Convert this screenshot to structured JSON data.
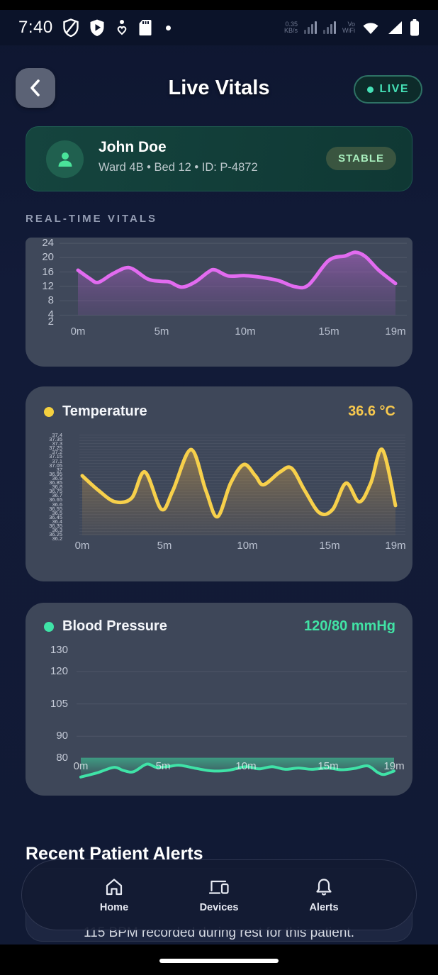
{
  "status_bar": {
    "time": "7:40",
    "net_speed_top": "0.35",
    "net_speed_bottom": "KB/s",
    "vowifi_top": "Vo",
    "vowifi_bottom": "WiFi",
    "icons_left": [
      "dns-shield-icon",
      "vpn-shield-icon",
      "wellbeing-icon",
      "sdcard-icon",
      "notification-dot-icon"
    ],
    "icons_right": [
      "signal-bars-icon",
      "signal-bars-icon",
      "wifi-icon",
      "cellular-triangle-icon",
      "battery-icon"
    ]
  },
  "header": {
    "title": "Live Vitals",
    "live_label": "LIVE"
  },
  "patient": {
    "name": "John Doe",
    "meta": "Ward 4B • Bed 12 • ID: P-4872",
    "status": "STABLE"
  },
  "section_label": "REAL-TIME VITALS",
  "chart_data": [
    {
      "id": "rate",
      "type": "area",
      "title": "",
      "value": "",
      "line_color": "#e26bf0",
      "fill_top": "rgba(196,104,220,0.50)",
      "fill_bottom": "rgba(140,80,170,0.18)",
      "line_width": 5,
      "ylim": [
        1.9,
        25.2
      ],
      "yticks": [
        24,
        20,
        16,
        12,
        8,
        4,
        2
      ],
      "gridlines": [
        24,
        20,
        16,
        12,
        8,
        4
      ],
      "fill_to": 4,
      "xticks": [
        {
          "m": 0,
          "label": "0m"
        },
        {
          "m": 5,
          "label": "5m"
        },
        {
          "m": 10,
          "label": "10m"
        },
        {
          "m": 15,
          "label": "15m"
        },
        {
          "m": 19,
          "label": "19m"
        }
      ],
      "points": [
        [
          0,
          16.5
        ],
        [
          0.7,
          14.2
        ],
        [
          1.2,
          13.1
        ],
        [
          2,
          15.3
        ],
        [
          2.8,
          17.1
        ],
        [
          3.3,
          16.8
        ],
        [
          4.2,
          14.0
        ],
        [
          5,
          13.4
        ],
        [
          5.5,
          13.2
        ],
        [
          6.2,
          11.8
        ],
        [
          7,
          13.2
        ],
        [
          7.8,
          16.0
        ],
        [
          8.2,
          16.6
        ],
        [
          9,
          14.9
        ],
        [
          10,
          15.0
        ],
        [
          11,
          14.5
        ],
        [
          12,
          13.6
        ],
        [
          13,
          11.9
        ],
        [
          13.8,
          12.4
        ],
        [
          15,
          19.2
        ],
        [
          16,
          20.5
        ],
        [
          16.6,
          21.5
        ],
        [
          17.2,
          20.3
        ],
        [
          18,
          16.5
        ],
        [
          19,
          12.8
        ]
      ]
    },
    {
      "id": "temp",
      "type": "area",
      "title": "Temperature",
      "value": "36.6 °C",
      "dot_color": "#f4d03f",
      "value_color": "#f8c94e",
      "line_color": "#f7d04b",
      "fill_top": "rgba(208,160,72,0.55)",
      "fill_bottom": "rgba(150,120,80,0.10)",
      "line_width": 5,
      "ylim": [
        36.1,
        37.45
      ],
      "yticks": [],
      "ytick_dense": [
        "37.4",
        "37.35",
        "37.3",
        "37.25",
        "37.2",
        "37.15",
        "37.1",
        "37.05",
        "37",
        "36.95",
        "36.9",
        "36.85",
        "36.8",
        "36.75",
        "36.7",
        "36.65",
        "36.6",
        "36.55",
        "36.5",
        "36.45",
        "36.4",
        "36.35",
        "36.3",
        "36.25",
        "36.2"
      ],
      "gridlines": [],
      "fill_to": 36.1,
      "xticks": [
        {
          "m": 0,
          "label": "0m"
        },
        {
          "m": 5,
          "label": "5m"
        },
        {
          "m": 10,
          "label": "10m"
        },
        {
          "m": 15,
          "label": "15m"
        },
        {
          "m": 19,
          "label": "19m"
        }
      ],
      "points": [
        [
          0,
          36.9
        ],
        [
          1,
          36.7
        ],
        [
          2,
          36.55
        ],
        [
          3,
          36.6
        ],
        [
          3.8,
          36.95
        ],
        [
          4.8,
          36.45
        ],
        [
          5.5,
          36.7
        ],
        [
          6.6,
          37.25
        ],
        [
          7.5,
          36.7
        ],
        [
          8.2,
          36.35
        ],
        [
          9,
          36.8
        ],
        [
          9.8,
          37.05
        ],
        [
          10.5,
          36.9
        ],
        [
          11,
          36.78
        ],
        [
          12,
          36.95
        ],
        [
          12.7,
          37.0
        ],
        [
          13.5,
          36.7
        ],
        [
          14.4,
          36.4
        ],
        [
          15.2,
          36.45
        ],
        [
          16,
          36.8
        ],
        [
          16.8,
          36.55
        ],
        [
          17.5,
          36.8
        ],
        [
          18.2,
          37.25
        ],
        [
          19,
          36.5
        ]
      ]
    },
    {
      "id": "bp",
      "type": "area",
      "title": "Blood Pressure",
      "value": "120/80 mmHg",
      "dot_color": "#3fe3a7",
      "value_color": "#41e3a5",
      "line_color": "#3fe3a7",
      "fill_top": "rgba(63,224,164,0.55)",
      "fill_bottom": "rgba(63,224,164,0.05)",
      "line_width": 4,
      "ylim": [
        65,
        133
      ],
      "yticks": [
        130,
        120,
        105,
        90,
        80
      ],
      "gridlines": [
        120,
        105,
        90
      ],
      "fill_to": 80,
      "xticks": [
        {
          "m": 0,
          "label": "0m"
        },
        {
          "m": 5,
          "label": "5m"
        },
        {
          "m": 10,
          "label": "10m"
        },
        {
          "m": 15,
          "label": "15m"
        },
        {
          "m": 19,
          "label": "19m"
        }
      ],
      "points": [
        [
          0,
          71
        ],
        [
          1,
          73
        ],
        [
          2,
          75.5
        ],
        [
          2.6,
          74
        ],
        [
          3.2,
          73.5
        ],
        [
          4,
          77
        ],
        [
          4.6,
          75.5
        ],
        [
          5.4,
          76
        ],
        [
          6,
          76.5
        ],
        [
          7,
          75
        ],
        [
          8,
          73.8
        ],
        [
          9,
          74.2
        ],
        [
          10,
          75.8
        ],
        [
          10.8,
          74.8
        ],
        [
          11.6,
          75.8
        ],
        [
          12.4,
          74.6
        ],
        [
          13.2,
          75.2
        ],
        [
          14,
          74.6
        ],
        [
          15,
          75.2
        ],
        [
          15.8,
          74.4
        ],
        [
          16.6,
          75
        ],
        [
          17.4,
          76.2
        ],
        [
          18,
          73.2
        ],
        [
          18.4,
          72.2
        ],
        [
          19,
          73.8
        ]
      ]
    }
  ],
  "alerts": {
    "heading": "Recent Patient Alerts",
    "alert_text": "115 BPM recorded during rest for this patient."
  },
  "bottom_nav": {
    "items": [
      {
        "id": "home",
        "label": "Home",
        "icon": "home-icon"
      },
      {
        "id": "devices",
        "label": "Devices",
        "icon": "devices-icon"
      },
      {
        "id": "alerts",
        "label": "Alerts",
        "icon": "bell-icon"
      }
    ]
  },
  "colors": {
    "live_accent": "#45e0b6",
    "stable_badge_bg": "#3a5540",
    "stable_badge_text": "#a9efbe",
    "card_bg": "#3e4759",
    "page_bg": "#121b38"
  }
}
